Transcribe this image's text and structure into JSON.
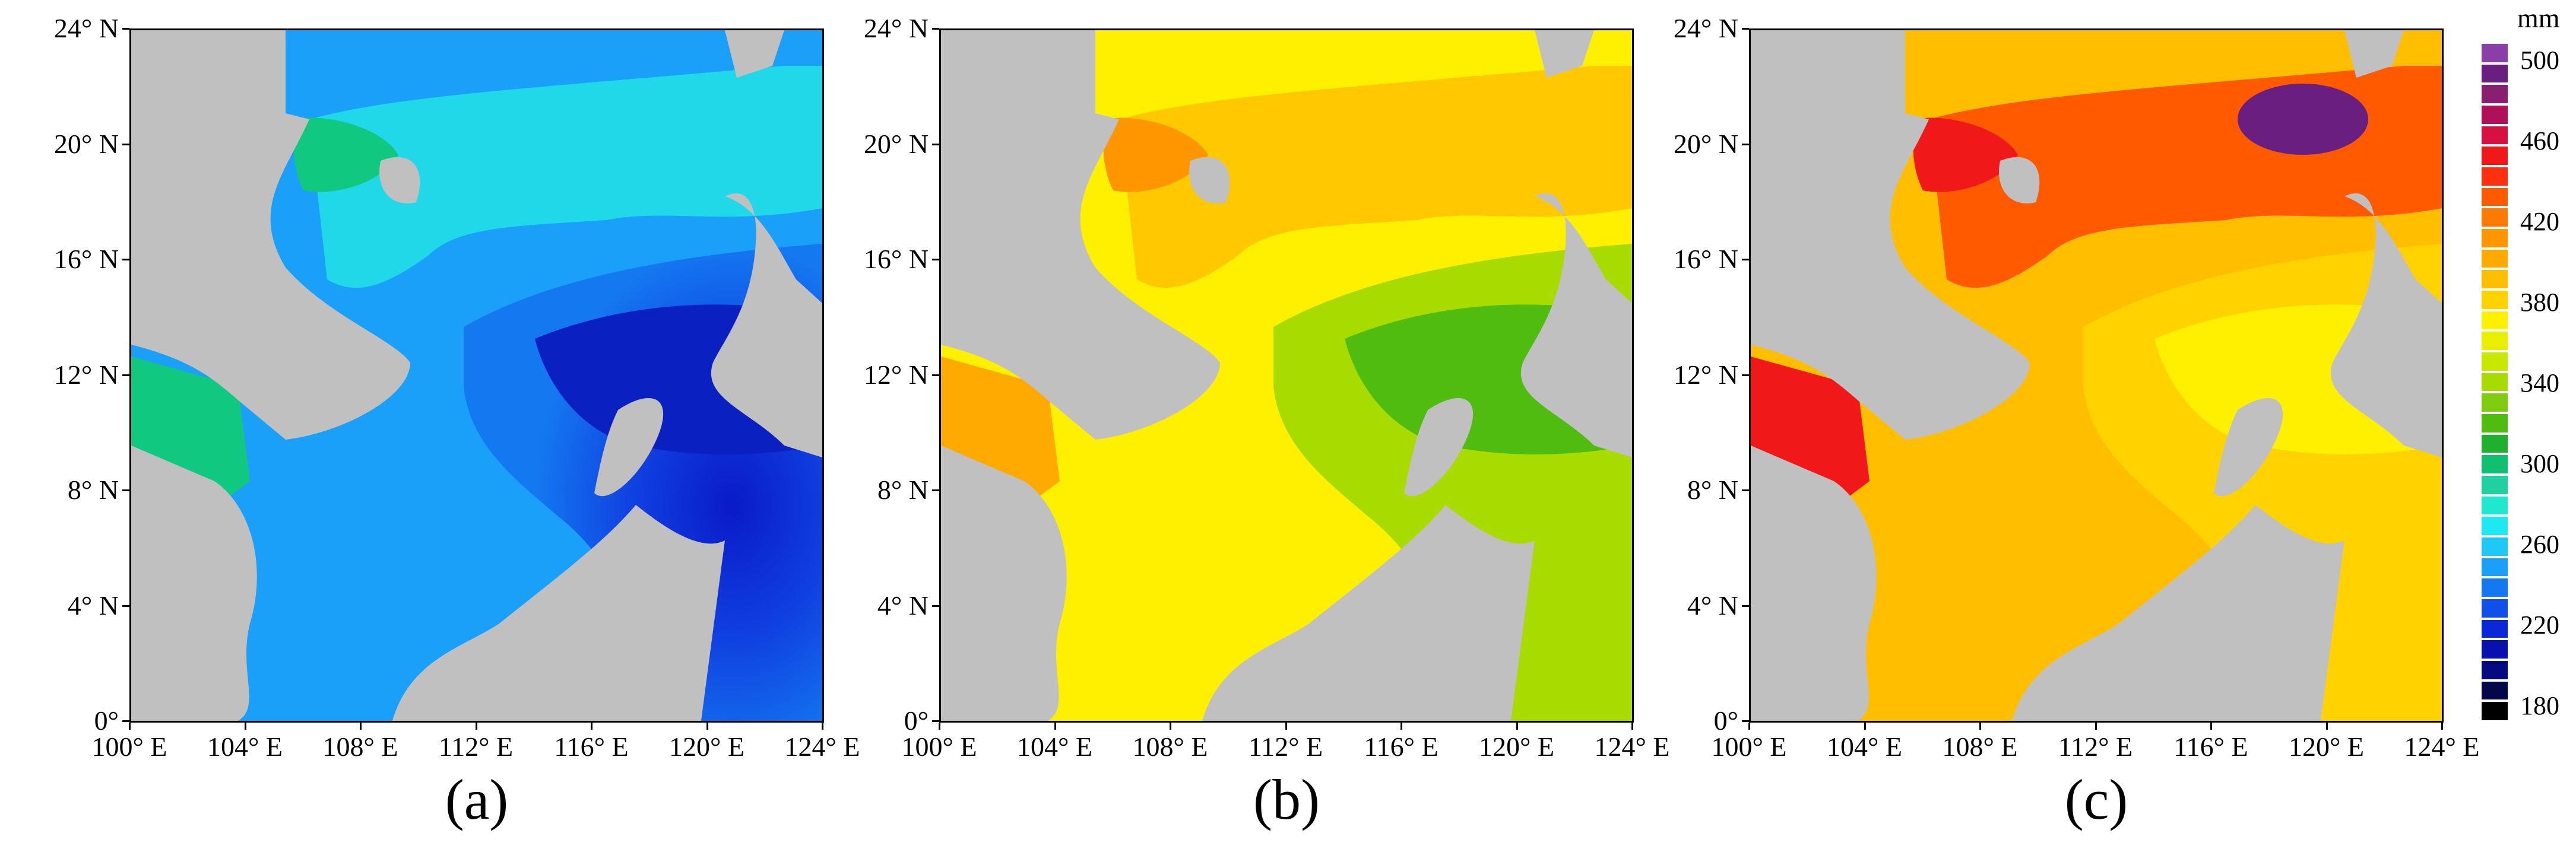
{
  "panels": [
    {
      "label": "(a)"
    },
    {
      "label": "(b)"
    },
    {
      "label": "(c)"
    }
  ],
  "y_ticks": [
    "24° N",
    "20° N",
    "16° N",
    "12° N",
    "8° N",
    "4° N",
    "0°"
  ],
  "x_ticks": [
    "100° E",
    "104° E",
    "108° E",
    "112° E",
    "116° E",
    "120° E",
    "124° E"
  ],
  "colorbar": {
    "unit": "mm",
    "labels": [
      "500",
      "460",
      "420",
      "380",
      "340",
      "300",
      "260",
      "220",
      "180"
    ],
    "colors_top_to_bottom": [
      "#8a3fa8",
      "#6a1f80",
      "#8a1f70",
      "#b0105a",
      "#d81040",
      "#f01818",
      "#ff3010",
      "#ff5a00",
      "#ff7a00",
      "#ff9600",
      "#ffaa00",
      "#ffbe00",
      "#ffd200",
      "#fff000",
      "#e8f000",
      "#c8e800",
      "#a8dc00",
      "#80cc10",
      "#50bc10",
      "#20b030",
      "#10c070",
      "#20d0a0",
      "#20e8d0",
      "#20e8f0",
      "#20c8f8",
      "#1aa0f8",
      "#1478f0",
      "#1050e8",
      "#0a28d8",
      "#0810b0",
      "#060a80",
      "#04064a",
      "#000000"
    ]
  },
  "land_color": "#c0c0c0"
}
